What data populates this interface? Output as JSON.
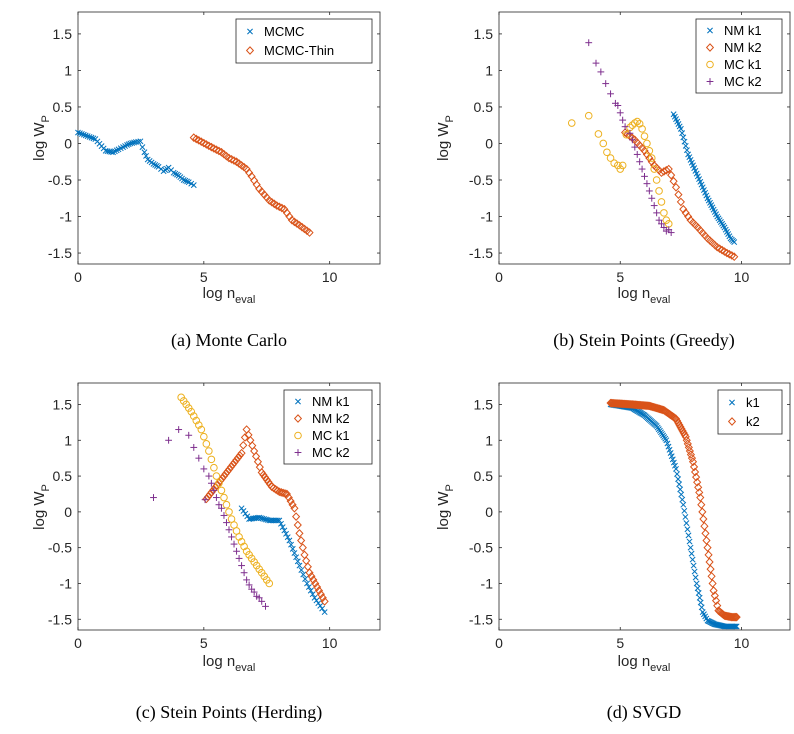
{
  "colors": {
    "blue": "#0072BD",
    "orange": "#D95319",
    "yellow": "#EDB120",
    "purple": "#7E2F8E"
  },
  "chart_data": [
    {
      "type": "scatter",
      "caption": "(a) Monte Carlo",
      "xlabel": "log n",
      "xlabel_sub": "eval",
      "ylabel": "log W",
      "ylabel_sub": "P",
      "xlim": [
        0,
        12
      ],
      "ylim": [
        -1.65,
        1.8
      ],
      "xticks": [
        0,
        5,
        10
      ],
      "yticks": [
        -1.5,
        -1,
        -0.5,
        0,
        0.5,
        1,
        1.5
      ],
      "ytick_labels": [
        "-1.5",
        "-1",
        "-0.5",
        "0",
        "0.5",
        "1",
        "1.5"
      ],
      "legend": "top-right",
      "series": [
        {
          "name": "MCMC",
          "marker": "x",
          "color": "#0072BD",
          "mode": "fill",
          "step": 0.08,
          "points": [
            [
              0,
              0.15
            ],
            [
              0.69,
              0.06
            ],
            [
              1.1,
              -0.1
            ],
            [
              1.39,
              -0.12
            ],
            [
              1.61,
              -0.08
            ],
            [
              1.79,
              -0.05
            ],
            [
              1.95,
              -0.02
            ],
            [
              2.08,
              0.0
            ],
            [
              2.3,
              0.02
            ],
            [
              2.48,
              0.03
            ],
            [
              2.56,
              -0.05
            ],
            [
              2.64,
              -0.12
            ],
            [
              2.77,
              -0.22
            ],
            [
              3.0,
              -0.28
            ],
            [
              3.2,
              -0.32
            ],
            [
              3.4,
              -0.38
            ],
            [
              3.6,
              -0.33
            ],
            [
              3.8,
              -0.4
            ],
            [
              4.0,
              -0.44
            ],
            [
              4.2,
              -0.5
            ],
            [
              4.4,
              -0.53
            ],
            [
              4.6,
              -0.57
            ]
          ]
        },
        {
          "name": "MCMC-Thin",
          "marker": "d",
          "color": "#D95319",
          "mode": "fill",
          "step": 0.1,
          "points": [
            [
              4.6,
              0.08
            ],
            [
              5.3,
              -0.05
            ],
            [
              5.7,
              -0.12
            ],
            [
              6.0,
              -0.2
            ],
            [
              6.3,
              -0.25
            ],
            [
              6.7,
              -0.35
            ],
            [
              6.9,
              -0.45
            ],
            [
              7.2,
              -0.62
            ],
            [
              7.6,
              -0.78
            ],
            [
              7.9,
              -0.85
            ],
            [
              8.2,
              -0.9
            ],
            [
              8.5,
              -1.05
            ],
            [
              8.8,
              -1.12
            ],
            [
              9.2,
              -1.22
            ]
          ]
        }
      ]
    },
    {
      "type": "scatter",
      "caption": "(b) Stein Points (Greedy)",
      "xlabel": "log n",
      "xlabel_sub": "eval",
      "ylabel": "log W",
      "ylabel_sub": "P",
      "xlim": [
        0,
        12
      ],
      "ylim": [
        -1.65,
        1.8
      ],
      "xticks": [
        0,
        5,
        10
      ],
      "yticks": [
        -1.5,
        -1,
        -0.5,
        0,
        0.5,
        1,
        1.5
      ],
      "ytick_labels": [
        "-1.5",
        "-1",
        "-0.5",
        "0",
        "0.5",
        "1",
        "1.5"
      ],
      "legend": "top-right",
      "series": [
        {
          "name": "NM k1",
          "marker": "x",
          "color": "#0072BD",
          "mode": "fill",
          "step": 0.05,
          "points": [
            [
              7.2,
              0.4
            ],
            [
              7.5,
              0.2
            ],
            [
              7.8,
              -0.15
            ],
            [
              8.2,
              -0.45
            ],
            [
              8.6,
              -0.75
            ],
            [
              9.0,
              -1.0
            ],
            [
              9.3,
              -1.15
            ],
            [
              9.55,
              -1.3
            ],
            [
              9.7,
              -1.35
            ]
          ]
        },
        {
          "name": "NM k2",
          "marker": "d",
          "color": "#D95319",
          "mode": "fill",
          "step": 0.09,
          "points": [
            [
              5.2,
              0.15
            ],
            [
              5.6,
              0.05
            ],
            [
              6.0,
              -0.1
            ],
            [
              6.4,
              -0.3
            ],
            [
              6.7,
              -0.4
            ],
            [
              7.0,
              -0.35
            ],
            [
              7.3,
              -0.6
            ],
            [
              7.6,
              -0.9
            ],
            [
              7.9,
              -1.05
            ],
            [
              8.2,
              -1.15
            ],
            [
              8.6,
              -1.3
            ],
            [
              9.0,
              -1.42
            ],
            [
              9.4,
              -1.5
            ],
            [
              9.7,
              -1.55
            ]
          ]
        },
        {
          "name": "MC k1",
          "marker": "o",
          "color": "#EDB120",
          "mode": "points",
          "points": [
            [
              3.0,
              0.28
            ],
            [
              3.7,
              0.38
            ],
            [
              4.1,
              0.13
            ],
            [
              4.3,
              0.0
            ],
            [
              4.45,
              -0.12
            ],
            [
              4.6,
              -0.2
            ],
            [
              4.75,
              -0.27
            ],
            [
              4.9,
              -0.3
            ],
            [
              5.0,
              -0.35
            ],
            [
              5.1,
              -0.3
            ],
            [
              5.25,
              0.12
            ],
            [
              5.4,
              0.22
            ],
            [
              5.5,
              0.25
            ],
            [
              5.6,
              0.28
            ],
            [
              5.7,
              0.3
            ],
            [
              5.8,
              0.27
            ],
            [
              5.9,
              0.2
            ],
            [
              6.0,
              0.1
            ],
            [
              6.1,
              0.0
            ],
            [
              6.2,
              -0.1
            ],
            [
              6.3,
              -0.2
            ],
            [
              6.4,
              -0.35
            ],
            [
              6.5,
              -0.5
            ],
            [
              6.6,
              -0.65
            ],
            [
              6.7,
              -0.8
            ],
            [
              6.8,
              -0.95
            ],
            [
              6.9,
              -1.05
            ],
            [
              7.0,
              -1.1
            ]
          ]
        },
        {
          "name": "MC k2",
          "marker": "+",
          "color": "#7E2F8E",
          "mode": "points",
          "points": [
            [
              3.7,
              1.38
            ],
            [
              4.0,
              1.1
            ],
            [
              4.2,
              0.98
            ],
            [
              4.4,
              0.82
            ],
            [
              4.6,
              0.68
            ],
            [
              4.8,
              0.55
            ],
            [
              4.9,
              0.52
            ],
            [
              5.0,
              0.42
            ],
            [
              5.1,
              0.32
            ],
            [
              5.2,
              0.23
            ],
            [
              5.4,
              0.14
            ],
            [
              5.5,
              0.05
            ],
            [
              5.6,
              -0.05
            ],
            [
              5.7,
              -0.15
            ],
            [
              5.8,
              -0.25
            ],
            [
              5.9,
              -0.35
            ],
            [
              6.0,
              -0.45
            ],
            [
              6.1,
              -0.55
            ],
            [
              6.2,
              -0.65
            ],
            [
              6.3,
              -0.75
            ],
            [
              6.4,
              -0.85
            ],
            [
              6.5,
              -0.95
            ],
            [
              6.6,
              -1.05
            ],
            [
              6.7,
              -1.1
            ],
            [
              6.8,
              -1.15
            ],
            [
              6.9,
              -1.2
            ],
            [
              7.0,
              -1.18
            ],
            [
              7.1,
              -1.22
            ]
          ]
        }
      ]
    },
    {
      "type": "scatter",
      "caption": "(c) Stein Points (Herding)",
      "xlabel": "log n",
      "xlabel_sub": "eval",
      "ylabel": "log W",
      "ylabel_sub": "P",
      "xlim": [
        0,
        12
      ],
      "ylim": [
        -1.65,
        1.8
      ],
      "xticks": [
        0,
        5,
        10
      ],
      "yticks": [
        -1.5,
        -1,
        -0.5,
        0,
        0.5,
        1,
        1.5
      ],
      "ytick_labels": [
        "-1.5",
        "-1",
        "-0.5",
        "0",
        "0.5",
        "1",
        "1.5"
      ],
      "legend": "top-right",
      "series": [
        {
          "name": "NM k1",
          "marker": "x",
          "color": "#0072BD",
          "mode": "fill",
          "step": 0.07,
          "points": [
            [
              6.5,
              0.05
            ],
            [
              6.8,
              -0.1
            ],
            [
              7.2,
              -0.08
            ],
            [
              7.6,
              -0.12
            ],
            [
              8.0,
              -0.12
            ],
            [
              8.4,
              -0.4
            ],
            [
              8.8,
              -0.75
            ],
            [
              9.1,
              -1.0
            ],
            [
              9.4,
              -1.2
            ],
            [
              9.7,
              -1.35
            ],
            [
              9.8,
              -1.4
            ]
          ]
        },
        {
          "name": "NM k2",
          "marker": "d",
          "color": "#D95319",
          "mode": "fill",
          "step": 0.07,
          "points": [
            [
              5.1,
              0.18
            ],
            [
              6.5,
              0.82
            ],
            [
              6.7,
              1.15
            ],
            [
              7.0,
              0.85
            ],
            [
              7.3,
              0.55
            ],
            [
              7.7,
              0.35
            ],
            [
              8.0,
              0.28
            ],
            [
              8.3,
              0.25
            ],
            [
              8.6,
              0.05
            ],
            [
              8.8,
              -0.3
            ],
            [
              9.0,
              -0.6
            ],
            [
              9.2,
              -0.85
            ],
            [
              9.5,
              -1.05
            ],
            [
              9.8,
              -1.25
            ]
          ]
        },
        {
          "name": "MC k1",
          "marker": "o",
          "color": "#EDB120",
          "mode": "fill",
          "step": 0.09,
          "points": [
            [
              4.1,
              1.6
            ],
            [
              4.5,
              1.4
            ],
            [
              4.9,
              1.15
            ],
            [
              5.2,
              0.85
            ],
            [
              5.5,
              0.5
            ],
            [
              5.8,
              0.2
            ],
            [
              6.1,
              -0.1
            ],
            [
              6.4,
              -0.35
            ],
            [
              6.7,
              -0.55
            ],
            [
              7.0,
              -0.7
            ],
            [
              7.3,
              -0.85
            ],
            [
              7.6,
              -1.0
            ]
          ]
        },
        {
          "name": "MC k2",
          "marker": "+",
          "color": "#7E2F8E",
          "mode": "points",
          "points": [
            [
              3.0,
              0.2
            ],
            [
              3.6,
              1.0
            ],
            [
              4.0,
              1.15
            ],
            [
              4.4,
              1.07
            ],
            [
              4.6,
              0.9
            ],
            [
              4.8,
              0.75
            ],
            [
              5.0,
              0.6
            ],
            [
              5.2,
              0.5
            ],
            [
              5.05,
              0.17
            ],
            [
              5.3,
              0.4
            ],
            [
              5.4,
              0.3
            ],
            [
              5.5,
              0.2
            ],
            [
              5.6,
              0.1
            ],
            [
              5.7,
              0.05
            ],
            [
              5.8,
              -0.05
            ],
            [
              5.9,
              -0.15
            ],
            [
              6.0,
              -0.25
            ],
            [
              6.1,
              -0.35
            ],
            [
              6.2,
              -0.45
            ],
            [
              6.3,
              -0.55
            ],
            [
              6.4,
              -0.65
            ],
            [
              6.5,
              -0.75
            ],
            [
              6.6,
              -0.85
            ],
            [
              6.7,
              -0.95
            ],
            [
              6.8,
              -1.02
            ],
            [
              6.9,
              -1.08
            ],
            [
              7.0,
              -1.12
            ],
            [
              7.1,
              -1.18
            ],
            [
              7.2,
              -1.2
            ],
            [
              7.3,
              -1.25
            ],
            [
              7.45,
              -1.32
            ]
          ]
        }
      ]
    },
    {
      "type": "scatter",
      "caption": "(d) SVGD",
      "xlabel": "log n",
      "xlabel_sub": "eval",
      "ylabel": "log W",
      "ylabel_sub": "P",
      "xlim": [
        0,
        12
      ],
      "ylim": [
        -1.65,
        1.8
      ],
      "xticks": [
        0,
        5,
        10
      ],
      "yticks": [
        -1.5,
        -1,
        -0.5,
        0,
        0.5,
        1,
        1.5
      ],
      "ytick_labels": [
        "-1.5",
        "-1",
        "-0.5",
        "0",
        "0.5",
        "1",
        "1.5"
      ],
      "legend": "top-right",
      "series": [
        {
          "name": "k1",
          "marker": "x",
          "color": "#0072BD",
          "mode": "fill",
          "step": 0.045,
          "points": [
            [
              4.6,
              1.5
            ],
            [
              5.5,
              1.45
            ],
            [
              6.0,
              1.35
            ],
            [
              6.5,
              1.2
            ],
            [
              6.9,
              1.0
            ],
            [
              7.3,
              0.6
            ],
            [
              7.6,
              0.1
            ],
            [
              7.9,
              -0.5
            ],
            [
              8.15,
              -1.0
            ],
            [
              8.4,
              -1.4
            ],
            [
              8.6,
              -1.52
            ],
            [
              8.9,
              -1.57
            ],
            [
              9.3,
              -1.6
            ],
            [
              9.8,
              -1.6
            ]
          ]
        },
        {
          "name": "k2",
          "marker": "d",
          "color": "#D95319",
          "mode": "fill",
          "step": 0.045,
          "points": [
            [
              4.6,
              1.52
            ],
            [
              5.5,
              1.5
            ],
            [
              6.2,
              1.48
            ],
            [
              6.8,
              1.42
            ],
            [
              7.3,
              1.3
            ],
            [
              7.7,
              1.05
            ],
            [
              8.0,
              0.7
            ],
            [
              8.3,
              0.2
            ],
            [
              8.6,
              -0.5
            ],
            [
              8.85,
              -1.1
            ],
            [
              9.05,
              -1.38
            ],
            [
              9.3,
              -1.45
            ],
            [
              9.6,
              -1.47
            ],
            [
              9.8,
              -1.47
            ]
          ]
        }
      ]
    }
  ]
}
